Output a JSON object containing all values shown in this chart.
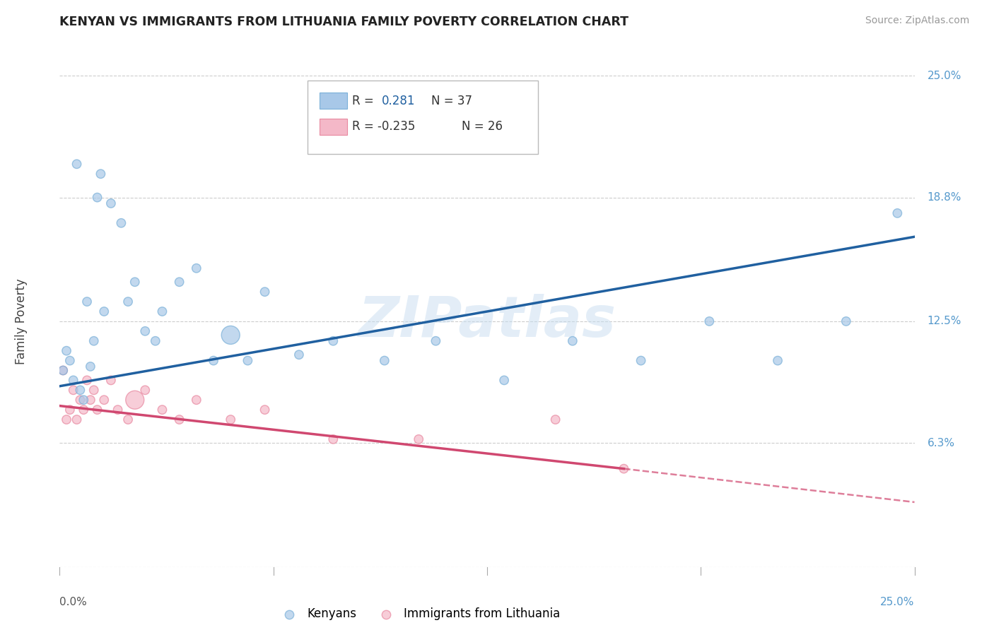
{
  "title": "KENYAN VS IMMIGRANTS FROM LITHUANIA FAMILY POVERTY CORRELATION CHART",
  "source": "Source: ZipAtlas.com",
  "ylabel": "Family Poverty",
  "xmin": 0.0,
  "xmax": 25.0,
  "ymin": 0.0,
  "ymax": 25.0,
  "yticks": [
    0.0,
    6.3,
    12.5,
    18.8,
    25.0
  ],
  "ytick_labels": [
    "",
    "6.3%",
    "12.5%",
    "18.8%",
    "25.0%"
  ],
  "watermark": "ZIPatlas",
  "blue_color": "#a8c8e8",
  "blue_edge_color": "#7ab0d8",
  "pink_color": "#f4b8c8",
  "pink_edge_color": "#e888a0",
  "blue_line_color": "#2060a0",
  "pink_line_color": "#d04870",
  "background_color": "#ffffff",
  "grid_color": "#cccccc",
  "ytick_color": "#5599cc",
  "kenyan_x": [
    0.1,
    0.2,
    0.3,
    0.4,
    0.5,
    0.6,
    0.7,
    0.8,
    0.9,
    1.0,
    1.1,
    1.2,
    1.3,
    1.5,
    1.8,
    2.0,
    2.2,
    2.5,
    2.8,
    3.0,
    3.5,
    4.0,
    4.5,
    5.0,
    5.5,
    6.0,
    7.0,
    8.0,
    9.5,
    11.0,
    13.0,
    15.0,
    17.0,
    19.0,
    21.0,
    23.0,
    24.5
  ],
  "kenyan_y": [
    10.0,
    11.0,
    10.5,
    9.5,
    20.5,
    9.0,
    8.5,
    13.5,
    10.2,
    11.5,
    18.8,
    20.0,
    13.0,
    18.5,
    17.5,
    13.5,
    14.5,
    12.0,
    11.5,
    13.0,
    14.5,
    15.2,
    10.5,
    11.8,
    10.5,
    14.0,
    10.8,
    11.5,
    10.5,
    11.5,
    9.5,
    11.5,
    10.5,
    12.5,
    10.5,
    12.5,
    18.0
  ],
  "kenyan_sizes": [
    80,
    80,
    80,
    80,
    80,
    80,
    80,
    80,
    80,
    80,
    80,
    80,
    80,
    80,
    80,
    80,
    80,
    80,
    80,
    80,
    80,
    80,
    80,
    350,
    80,
    80,
    80,
    80,
    80,
    80,
    80,
    80,
    80,
    80,
    80,
    80,
    80
  ],
  "lith_x": [
    0.1,
    0.2,
    0.3,
    0.4,
    0.5,
    0.6,
    0.7,
    0.8,
    0.9,
    1.0,
    1.1,
    1.3,
    1.5,
    1.7,
    2.0,
    2.2,
    2.5,
    3.0,
    3.5,
    4.0,
    5.0,
    6.0,
    8.0,
    10.5,
    14.5,
    16.5
  ],
  "lith_y": [
    10.0,
    7.5,
    8.0,
    9.0,
    7.5,
    8.5,
    8.0,
    9.5,
    8.5,
    9.0,
    8.0,
    8.5,
    9.5,
    8.0,
    7.5,
    8.5,
    9.0,
    8.0,
    7.5,
    8.5,
    7.5,
    8.0,
    6.5,
    6.5,
    7.5,
    5.0
  ],
  "lith_sizes": [
    80,
    80,
    80,
    80,
    80,
    80,
    80,
    80,
    80,
    80,
    80,
    80,
    80,
    80,
    80,
    350,
    80,
    80,
    80,
    80,
    80,
    80,
    80,
    80,
    80,
    80
  ],
  "kenyan_line_x0": 0.0,
  "kenyan_line_x1": 25.0,
  "kenyan_line_y0": 9.2,
  "kenyan_line_y1": 16.8,
  "lith_solid_x0": 0.0,
  "lith_solid_x1": 16.5,
  "lith_solid_y0": 8.2,
  "lith_solid_y1": 5.0,
  "lith_dash_x0": 16.5,
  "lith_dash_x1": 25.0,
  "lith_dash_y0": 5.0,
  "lith_dash_y1": 3.3
}
